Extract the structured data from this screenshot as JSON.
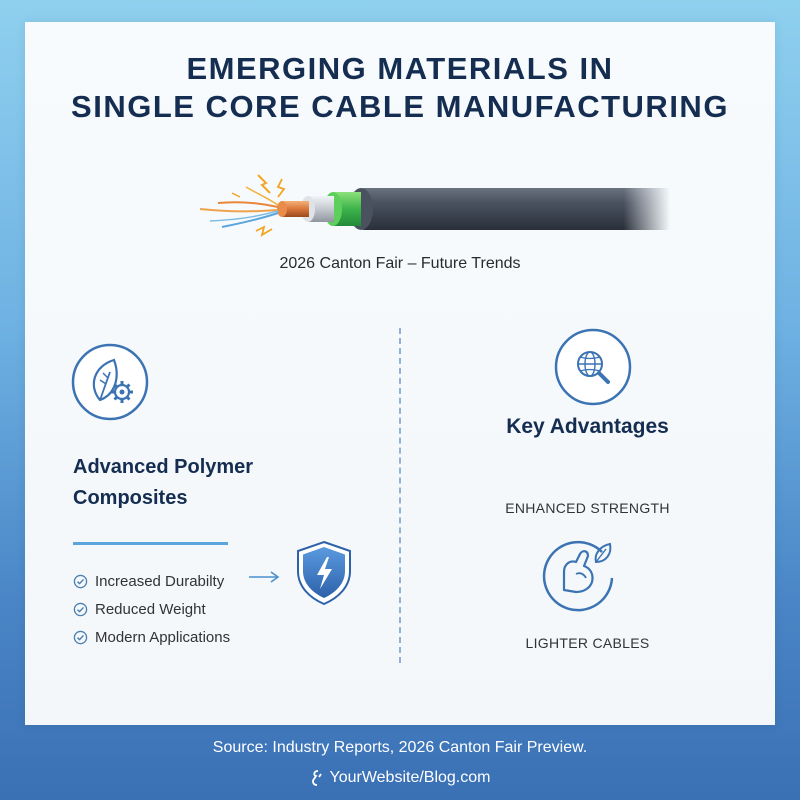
{
  "title": {
    "line1": "EMERGING MATERIALS IN",
    "line2": "SINGLE CORE CABLE MANUFACTURING"
  },
  "subtitle": "2026 Canton Fair – Future Trends",
  "left": {
    "heading_line1": "Advanced Polymer",
    "heading_line2": "Composites",
    "features": [
      "Increased Durabilty",
      "Reduced Weight",
      "Modern Applications"
    ],
    "icon": "leaf-gear-icon",
    "badge_icon": "shield-lightning-icon"
  },
  "right": {
    "heading": "Key Advantages",
    "label_strength": "ENHANCED STRENGTH",
    "label_lighter": "LIGHTER CABLES",
    "icon_top": "globe-magnifier-icon",
    "icon_bottom": "flexed-arm-leaf-icon"
  },
  "footer": {
    "source": "Source: Industry Reports, 2026 Canton Fair Preview.",
    "website": "YourWebsite/Blog.com"
  },
  "colors": {
    "title": "#142d50",
    "accent": "#3b73b3",
    "cable_green": "#37b34a",
    "cable_sheath": "#3a4250"
  }
}
